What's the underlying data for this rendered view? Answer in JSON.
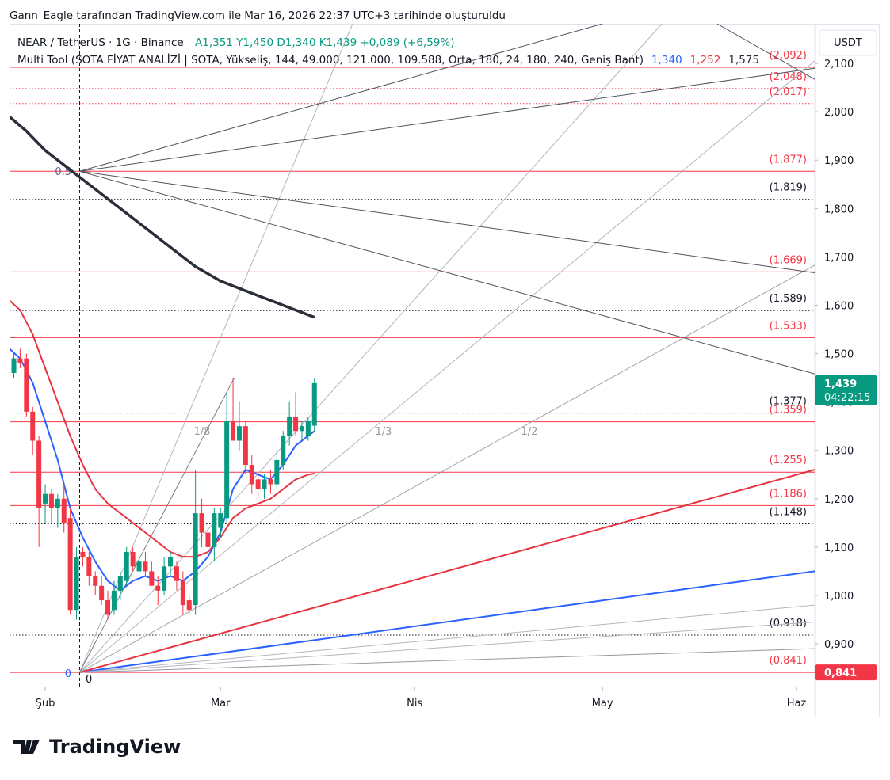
{
  "credit": "Gann_Eagle tarafından TradingView.com ile Mar 16, 2026 22:37 UTC+3 tarihinde oluşturuldu",
  "logo": "TradingView",
  "chart_data": {
    "type": "candlestick",
    "title": "NEAR / TetherUS · 1G · Binance",
    "ohlc_label": "A1,351 Y1,450 D1,340 K1,439 +0,089 (+6,59%)",
    "indicator": "Multi Tool (SOTA FİYAT ANALİZİ | SOTA, Yükseliş, 144, 49.000, 121.000, 109.588, Orta, 180, 24, 180, 240, Geniş Bant)",
    "currency": "USDT",
    "up_color": "#089981",
    "down_color": "#f23645",
    "xlim": [
      -5.7,
      122.9
    ],
    "xticks": [
      {
        "value": 0,
        "label": "Şub"
      },
      {
        "value": 28,
        "label": "Mar"
      },
      {
        "value": 59,
        "label": "Nis"
      },
      {
        "value": 89,
        "label": "May"
      },
      {
        "value": 120,
        "label": "Haz"
      }
    ],
    "ylim": [
      0.81,
      2.182
    ],
    "yticks": [
      {
        "value": 0.9,
        "label": "0,900"
      },
      {
        "value": 1.0,
        "label": "1,000"
      },
      {
        "value": 1.1,
        "label": "1,100"
      },
      {
        "value": 1.2,
        "label": "1,200"
      },
      {
        "value": 1.3,
        "label": "1,300"
      },
      {
        "value": 1.4,
        "label": "1,400"
      },
      {
        "value": 1.5,
        "label": "1,500"
      },
      {
        "value": 1.6,
        "label": "1,600"
      },
      {
        "value": 1.7,
        "label": "1,700"
      },
      {
        "value": 1.8,
        "label": "1,800"
      },
      {
        "value": 1.9,
        "label": "1,900"
      },
      {
        "value": 2.0,
        "label": "2,000"
      },
      {
        "value": 2.1,
        "label": "2,100"
      }
    ],
    "x": [
      -5,
      -4,
      -3,
      -2,
      -1,
      0,
      1,
      2,
      3,
      4,
      5,
      6,
      7,
      8,
      9,
      10,
      11,
      12,
      13,
      14,
      15,
      16,
      17,
      18,
      19,
      20,
      21,
      22,
      23,
      24,
      25,
      26,
      27,
      28,
      29,
      30,
      31,
      32,
      33,
      34,
      35,
      36,
      37,
      38,
      39,
      40,
      41,
      42,
      43
    ],
    "open": [
      1.46,
      1.49,
      1.49,
      1.38,
      1.32,
      1.19,
      1.21,
      1.18,
      1.2,
      1.16,
      0.97,
      1.09,
      1.08,
      1.04,
      1.02,
      0.99,
      0.97,
      1.01,
      1.03,
      1.09,
      1.05,
      1.07,
      1.05,
      1.02,
      1.01,
      1.06,
      1.06,
      1.03,
      0.99,
      0.98,
      1.17,
      1.13,
      1.1,
      1.14,
      1.16,
      1.36,
      1.32,
      1.35,
      1.27,
      1.24,
      1.22,
      1.24,
      1.23,
      1.27,
      1.33,
      1.37,
      1.34,
      1.33,
      1.351
    ],
    "high": [
      1.5,
      1.51,
      1.5,
      1.39,
      1.33,
      1.23,
      1.22,
      1.21,
      1.23,
      1.18,
      1.1,
      1.1,
      1.09,
      1.05,
      1.04,
      1.01,
      1.03,
      1.05,
      1.1,
      1.1,
      1.08,
      1.09,
      1.07,
      1.04,
      1.08,
      1.09,
      1.07,
      1.05,
      1.0,
      1.26,
      1.2,
      1.15,
      1.18,
      1.18,
      1.42,
      1.45,
      1.4,
      1.36,
      1.29,
      1.25,
      1.25,
      1.26,
      1.3,
      1.34,
      1.4,
      1.42,
      1.36,
      1.37,
      1.45
    ],
    "low": [
      1.45,
      1.47,
      1.37,
      1.29,
      1.1,
      1.15,
      1.15,
      1.14,
      1.13,
      0.96,
      0.95,
      1.06,
      1.02,
      1.0,
      0.98,
      0.95,
      0.96,
      0.99,
      1.02,
      1.05,
      1.03,
      1.04,
      1.02,
      0.98,
      1.0,
      1.04,
      1.01,
      0.96,
      0.96,
      0.96,
      1.1,
      1.08,
      1.07,
      1.12,
      1.15,
      1.32,
      1.3,
      1.25,
      1.21,
      1.2,
      1.2,
      1.21,
      1.22,
      1.26,
      1.31,
      1.33,
      1.32,
      1.32,
      1.34
    ],
    "close": [
      1.49,
      1.48,
      1.38,
      1.32,
      1.18,
      1.21,
      1.18,
      1.2,
      1.15,
      0.97,
      1.08,
      1.08,
      1.04,
      1.02,
      0.99,
      0.96,
      1.01,
      1.04,
      1.09,
      1.06,
      1.07,
      1.05,
      1.02,
      1.01,
      1.06,
      1.08,
      1.03,
      0.98,
      0.97,
      1.17,
      1.13,
      1.1,
      1.17,
      1.17,
      1.36,
      1.32,
      1.35,
      1.27,
      1.23,
      1.22,
      1.24,
      1.23,
      1.28,
      1.33,
      1.37,
      1.34,
      1.35,
      1.36,
      1.439
    ],
    "overlays": [
      {
        "color": "#2962ff",
        "width": 2,
        "last_label": "1,340",
        "x": [
          -5.7,
          -4,
          -2,
          0,
          2,
          4,
          6,
          8,
          10,
          12,
          14,
          16,
          18,
          20,
          22,
          24,
          26,
          28,
          30,
          32,
          34,
          36,
          38,
          40,
          42,
          43
        ],
        "values": [
          1.51,
          1.49,
          1.44,
          1.36,
          1.28,
          1.18,
          1.12,
          1.07,
          1.03,
          1.01,
          1.03,
          1.04,
          1.03,
          1.04,
          1.03,
          1.05,
          1.08,
          1.13,
          1.22,
          1.26,
          1.25,
          1.24,
          1.27,
          1.31,
          1.33,
          1.34
        ]
      },
      {
        "color": "#e8343f",
        "width": 2,
        "last_label": "1,252",
        "x": [
          -5.7,
          -4,
          -2,
          0,
          2,
          4,
          6,
          8,
          10,
          12,
          14,
          16,
          18,
          20,
          22,
          24,
          26,
          28,
          30,
          32,
          34,
          36,
          38,
          40,
          42,
          43
        ],
        "values": [
          1.61,
          1.59,
          1.54,
          1.47,
          1.4,
          1.33,
          1.27,
          1.22,
          1.19,
          1.17,
          1.15,
          1.13,
          1.11,
          1.09,
          1.08,
          1.08,
          1.09,
          1.12,
          1.16,
          1.18,
          1.19,
          1.2,
          1.22,
          1.24,
          1.25,
          1.252
        ]
      },
      {
        "color": "#2a2e39",
        "width": 3.5,
        "last_label": "1,575",
        "x": [
          -5.7,
          -3,
          0,
          3,
          5,
          8,
          12,
          16,
          20,
          24,
          28,
          32,
          36,
          40,
          43
        ],
        "values": [
          1.99,
          1.96,
          1.92,
          1.89,
          1.87,
          1.84,
          1.8,
          1.76,
          1.72,
          1.68,
          1.65,
          1.63,
          1.61,
          1.59,
          1.575
        ]
      }
    ],
    "levels": [
      {
        "value": 2.092,
        "label": "(2,092)",
        "color": "#f23645",
        "style": "solid"
      },
      {
        "value": 2.048,
        "label": "(2,048)",
        "color": "#f23645",
        "style": "dotted"
      },
      {
        "value": 2.017,
        "label": "(2,017)",
        "color": "#f23645",
        "style": "dotted"
      },
      {
        "value": 1.877,
        "label": "(1,877)",
        "color": "#f23645",
        "style": "solid"
      },
      {
        "value": 1.819,
        "label": "(1,819)",
        "color": "#131722",
        "style": "dotted"
      },
      {
        "value": 1.669,
        "label": "(1,669)",
        "color": "#f23645",
        "style": "solid"
      },
      {
        "value": 1.589,
        "label": "(1,589)",
        "color": "#131722",
        "style": "dotted"
      },
      {
        "value": 1.533,
        "label": "(1,533)",
        "color": "#f23645",
        "style": "solid"
      },
      {
        "value": 1.377,
        "label": "(1,377)",
        "color": "#131722",
        "style": "dotted"
      },
      {
        "value": 1.359,
        "label": "(1,359)",
        "color": "#f23645",
        "style": "solid"
      },
      {
        "value": 1.255,
        "label": "(1,255)",
        "color": "#f23645",
        "style": "solid"
      },
      {
        "value": 1.186,
        "label": "(1,186)",
        "color": "#f23645",
        "style": "solid"
      },
      {
        "value": 1.148,
        "label": "(1,148)",
        "color": "#131722",
        "style": "dotted"
      },
      {
        "value": 0.918,
        "label": "(0,918)",
        "color": "#131722",
        "style": "dotted"
      },
      {
        "value": 0.841,
        "label": "(0,841)",
        "color": "#f23645",
        "style": "solid"
      }
    ],
    "fan": [
      {
        "from": [
          5.5,
          0.841
        ],
        "to": [
          122.9,
          1.05
        ],
        "color": "#2962ff",
        "width": 2
      },
      {
        "from": [
          5.5,
          0.841
        ],
        "to": [
          122.9,
          1.26
        ],
        "color": "#e8343f",
        "width": 2
      },
      {
        "from": [
          5.5,
          0.841
        ],
        "to": [
          122.9,
          0.98
        ],
        "color": "#b2b5be",
        "width": 1
      },
      {
        "from": [
          5.5,
          0.841
        ],
        "to": [
          122.9,
          0.945
        ],
        "color": "#b2b5be",
        "width": 1
      },
      {
        "from": [
          5.5,
          0.841
        ],
        "to": [
          122.9,
          0.89
        ],
        "color": "#9598a1",
        "width": 1
      },
      {
        "from": [
          5.5,
          0.841
        ],
        "to": [
          122.9,
          1.683
        ],
        "color": "#a0a3ab",
        "width": 1
      },
      {
        "from": [
          5.5,
          0.841
        ],
        "to": [
          122.9,
          2.105
        ],
        "color": "#b2b5be",
        "width": 1
      },
      {
        "from": [
          5.5,
          0.841
        ],
        "to": [
          98.5,
          2.182
        ],
        "color": "#b2b5be",
        "width": 1
      },
      {
        "from": [
          5.5,
          0.841
        ],
        "to": [
          49.1,
          2.182
        ],
        "color": "#b2b5be",
        "width": 1
      },
      {
        "from": [
          5.5,
          0.841
        ],
        "to": [
          30.2,
          1.45
        ],
        "color": "#787b86",
        "width": 1
      },
      {
        "from": [
          5.5,
          1.877
        ],
        "to": [
          89.0,
          2.182
        ],
        "color": "#50535e",
        "width": 1
      },
      {
        "from": [
          5.5,
          1.877
        ],
        "to": [
          122.9,
          2.09
        ],
        "color": "#50535e",
        "width": 1
      },
      {
        "from": [
          5.5,
          1.877
        ],
        "to": [
          122.9,
          1.667
        ],
        "color": "#50535e",
        "width": 1
      },
      {
        "from": [
          5.5,
          1.877
        ],
        "to": [
          122.9,
          1.458
        ],
        "color": "#50535e",
        "width": 1
      },
      {
        "from": [
          107.3,
          2.182
        ],
        "to": [
          122.9,
          2.067
        ],
        "color": "#50535e",
        "width": 1
      }
    ],
    "fan_labels": [
      "1/8",
      "1/3",
      "1/2"
    ],
    "annotations": [
      "0,5",
      "0",
      "0"
    ],
    "price_tags": [
      {
        "value": 1.439,
        "label": "1,439",
        "countdown": "04:22:15",
        "color": "#089981"
      },
      {
        "value": 0.841,
        "label": "0,841",
        "color": "#f23645"
      }
    ]
  }
}
